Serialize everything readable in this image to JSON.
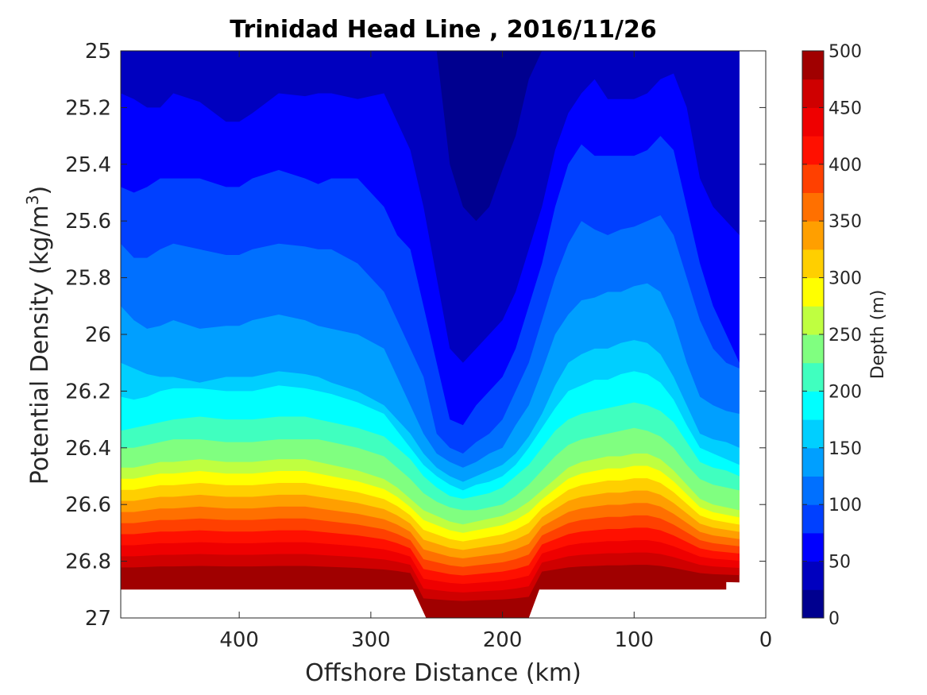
{
  "chart_data": {
    "type": "contourf",
    "title": "Trinidad Head Line , 2016/11/26",
    "xlabel": "Offshore Distance (km)",
    "ylabel": "Potential Density (kg/m",
    "ylabel_superscript": "3",
    "ylabel_suffix": ")",
    "colorbar_label": "Depth (m)",
    "x_reversed": true,
    "y_reversed": true,
    "xlim": [
      0,
      490
    ],
    "ylim": [
      25,
      27
    ],
    "xticks": [
      400,
      300,
      200,
      100,
      0
    ],
    "yticks": [
      25,
      25.2,
      25.4,
      25.6,
      25.8,
      26,
      26.2,
      26.4,
      26.6,
      26.8,
      27
    ],
    "colorbar_ticks": [
      0,
      50,
      100,
      150,
      200,
      250,
      300,
      350,
      400,
      450,
      500
    ],
    "colorbar_range": [
      0,
      500
    ],
    "colormap": "jet",
    "contour_interval": 25,
    "level_colors": [
      "#00008F",
      "#0000BF",
      "#0000FF",
      "#0040FF",
      "#0070FF",
      "#009FFF",
      "#00CFFF",
      "#00FFFF",
      "#40FFBF",
      "#80FF80",
      "#BFFF40",
      "#FFFF00",
      "#FFCF00",
      "#FF9F00",
      "#FF7000",
      "#FF4000",
      "#FF1000",
      "#EF0000",
      "#CF0000",
      "#A00000"
    ],
    "x": [
      490,
      480,
      470,
      460,
      450,
      430,
      410,
      400,
      390,
      370,
      350,
      340,
      330,
      310,
      290,
      280,
      270,
      260,
      250,
      240,
      230,
      220,
      210,
      200,
      190,
      180,
      170,
      160,
      150,
      140,
      130,
      120,
      110,
      100,
      90,
      80,
      70,
      60,
      50,
      40,
      30,
      20
    ],
    "isopycnal_density_for_depth": [
      {
        "depth": 25,
        "values": [
          25.0,
          25.0,
          25.0,
          25.0,
          25.0,
          25.0,
          25.0,
          25.0,
          25.0,
          25.0,
          25.0,
          25.0,
          25.0,
          25.0,
          25.0,
          25.0,
          25.0,
          25.0,
          25.0,
          25.4,
          25.55,
          25.6,
          25.55,
          25.42,
          25.3,
          25.1,
          25.0,
          25.0,
          25.0,
          25.0,
          25.0,
          25.0,
          25.0,
          25.0,
          25.0,
          25.0,
          25.0,
          25.0,
          25.0,
          25.0,
          25.0,
          25.0
        ]
      },
      {
        "depth": 50,
        "values": [
          25.15,
          25.17,
          25.2,
          25.2,
          25.15,
          25.18,
          25.25,
          25.25,
          25.22,
          25.15,
          25.16,
          25.15,
          25.15,
          25.17,
          25.15,
          25.25,
          25.35,
          25.55,
          25.8,
          26.05,
          26.1,
          26.05,
          26.0,
          25.95,
          25.85,
          25.7,
          25.55,
          25.35,
          25.22,
          25.15,
          25.1,
          25.17,
          25.17,
          25.17,
          25.15,
          25.1,
          25.08,
          25.2,
          25.45,
          25.55,
          25.6,
          25.65
        ]
      },
      {
        "depth": 75,
        "values": [
          25.48,
          25.5,
          25.48,
          25.45,
          25.45,
          25.45,
          25.48,
          25.48,
          25.45,
          25.42,
          25.45,
          25.47,
          25.45,
          25.45,
          25.55,
          25.65,
          25.7,
          25.9,
          26.1,
          26.3,
          26.32,
          26.25,
          26.2,
          26.15,
          26.05,
          25.9,
          25.75,
          25.55,
          25.4,
          25.33,
          25.37,
          25.37,
          25.37,
          25.37,
          25.35,
          25.3,
          25.35,
          25.55,
          25.75,
          25.9,
          26.0,
          26.1
        ]
      },
      {
        "depth": 100,
        "values": [
          25.68,
          25.73,
          25.73,
          25.7,
          25.68,
          25.7,
          25.72,
          25.72,
          25.7,
          25.68,
          25.69,
          25.7,
          25.7,
          25.75,
          25.85,
          25.95,
          26.05,
          26.15,
          26.35,
          26.4,
          26.42,
          26.38,
          26.35,
          26.3,
          26.2,
          26.1,
          25.95,
          25.8,
          25.68,
          25.6,
          25.63,
          25.65,
          25.63,
          25.62,
          25.6,
          25.58,
          25.65,
          25.8,
          25.95,
          26.05,
          26.1,
          26.12
        ]
      },
      {
        "depth": 125,
        "values": [
          25.9,
          25.95,
          25.98,
          25.97,
          25.95,
          25.98,
          25.97,
          25.97,
          25.95,
          25.93,
          25.95,
          25.97,
          25.98,
          26.0,
          26.05,
          26.15,
          26.25,
          26.35,
          26.42,
          26.45,
          26.47,
          26.45,
          26.42,
          26.4,
          26.32,
          26.25,
          26.13,
          26.0,
          25.93,
          25.88,
          25.87,
          25.85,
          25.85,
          25.83,
          25.82,
          25.85,
          25.95,
          26.1,
          26.22,
          26.25,
          26.27,
          26.28
        ]
      },
      {
        "depth": 150,
        "values": [
          26.1,
          26.12,
          26.14,
          26.15,
          26.15,
          26.17,
          26.15,
          26.15,
          26.15,
          26.13,
          26.14,
          26.15,
          26.17,
          26.2,
          26.25,
          26.3,
          26.35,
          26.42,
          26.47,
          26.5,
          26.52,
          26.5,
          26.48,
          26.46,
          26.42,
          26.36,
          26.28,
          26.18,
          26.1,
          26.07,
          26.05,
          26.05,
          26.03,
          26.02,
          26.03,
          26.07,
          26.15,
          26.25,
          26.35,
          26.37,
          26.38,
          26.4
        ]
      },
      {
        "depth": 175,
        "values": [
          26.22,
          26.23,
          26.22,
          26.2,
          26.19,
          26.19,
          26.2,
          26.2,
          26.2,
          26.18,
          26.19,
          26.2,
          26.21,
          26.24,
          26.28,
          26.34,
          26.4,
          26.46,
          26.5,
          26.53,
          26.55,
          26.53,
          26.52,
          26.5,
          26.46,
          26.4,
          26.33,
          26.26,
          26.2,
          26.18,
          26.16,
          26.16,
          26.14,
          26.13,
          26.14,
          26.17,
          26.23,
          26.32,
          26.4,
          26.42,
          26.44,
          26.46
        ]
      },
      {
        "depth": 200,
        "values": [
          26.34,
          26.33,
          26.32,
          26.31,
          26.3,
          26.29,
          26.3,
          26.3,
          26.3,
          26.29,
          26.29,
          26.3,
          26.31,
          26.33,
          26.36,
          26.4,
          26.44,
          26.5,
          26.54,
          26.57,
          26.58,
          26.57,
          26.56,
          26.54,
          26.5,
          26.46,
          26.4,
          26.34,
          26.3,
          26.28,
          26.27,
          26.26,
          26.25,
          26.24,
          26.25,
          26.27,
          26.31,
          26.38,
          26.45,
          26.47,
          26.48,
          26.5
        ]
      },
      {
        "depth": 225,
        "values": [
          26.4,
          26.4,
          26.39,
          26.38,
          26.37,
          26.37,
          26.38,
          26.38,
          26.38,
          26.37,
          26.37,
          26.37,
          26.38,
          26.4,
          26.43,
          26.47,
          26.51,
          26.56,
          26.59,
          26.61,
          26.62,
          26.62,
          26.61,
          26.6,
          26.57,
          26.53,
          26.48,
          26.43,
          26.39,
          26.37,
          26.36,
          26.35,
          26.34,
          26.33,
          26.34,
          26.36,
          26.4,
          26.46,
          26.51,
          26.53,
          26.54,
          26.55
        ]
      },
      {
        "depth": 250,
        "values": [
          26.47,
          26.47,
          26.46,
          26.45,
          26.45,
          26.44,
          26.45,
          26.45,
          26.45,
          26.44,
          26.44,
          26.45,
          26.46,
          26.48,
          26.51,
          26.54,
          26.58,
          26.62,
          26.64,
          26.66,
          26.67,
          26.66,
          26.65,
          26.64,
          26.62,
          26.59,
          26.55,
          26.51,
          26.47,
          26.45,
          26.44,
          26.43,
          26.43,
          26.42,
          26.42,
          26.44,
          26.48,
          26.53,
          26.58,
          26.6,
          26.61,
          26.62
        ]
      }
    ]
  }
}
